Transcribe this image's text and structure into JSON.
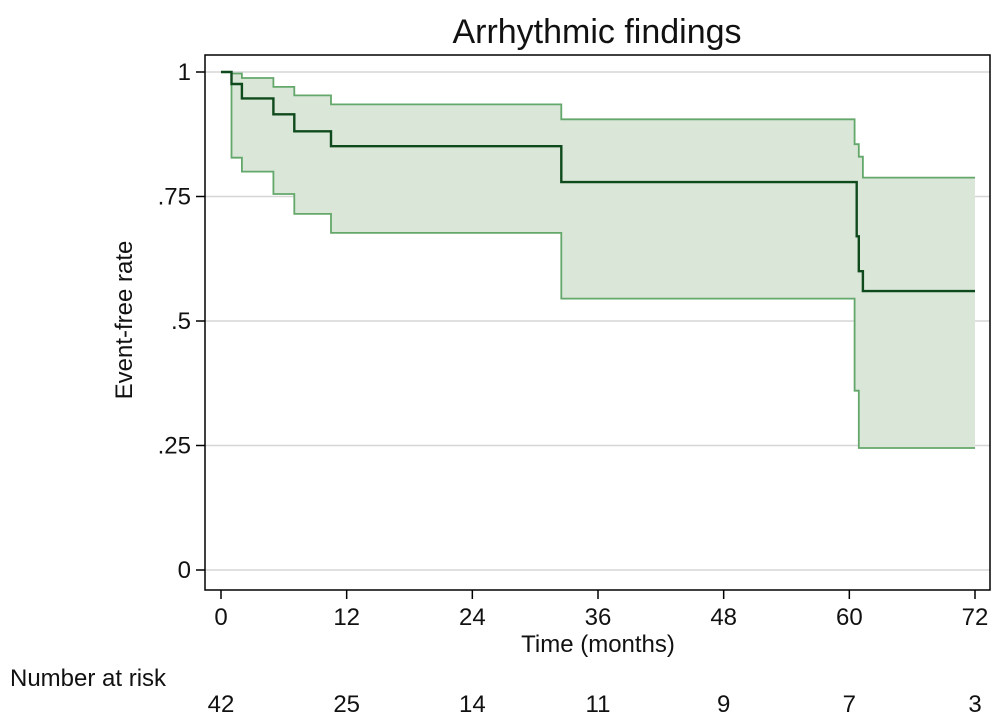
{
  "chart_data": {
    "type": "line",
    "subtype": "kaplan-meier step curve with confidence band",
    "title": "Arrhythmic findings",
    "xlabel": "Time (months)",
    "ylabel": "Event-free rate",
    "xlim": [
      0,
      72
    ],
    "ylim": [
      0,
      1
    ],
    "x_ticks": [
      0,
      12,
      24,
      36,
      48,
      60,
      72
    ],
    "x_tick_labels": [
      "0",
      "12",
      "24",
      "36",
      "48",
      "60",
      "72"
    ],
    "y_ticks": [
      0,
      0.25,
      0.5,
      0.75,
      1
    ],
    "y_tick_labels": [
      "0",
      ".25",
      ".5",
      ".75",
      "1"
    ],
    "grid": "horizontal",
    "legend": "none",
    "colors": {
      "survival_line": "#0f4a1c",
      "ci_line": "#63a86a",
      "ci_fill": "#d9e6d8",
      "gridline": "#d6d6d6",
      "axis": "#000000"
    },
    "series": [
      {
        "role": "estimate",
        "step": "post",
        "x": [
          0,
          1,
          2,
          5,
          7,
          10.5,
          32.5,
          60.7,
          60.9,
          61.3,
          72
        ],
        "y": [
          1.0,
          0.976,
          0.947,
          0.915,
          0.881,
          0.851,
          0.779,
          0.67,
          0.6,
          0.56,
          0.56
        ]
      },
      {
        "role": "upper_ci",
        "step": "post",
        "x": [
          0,
          1,
          2,
          5,
          7,
          10.5,
          32.5,
          60.5,
          60.9,
          61.3,
          72
        ],
        "y": [
          1.0,
          0.997,
          0.988,
          0.97,
          0.953,
          0.935,
          0.905,
          0.855,
          0.83,
          0.788,
          0.788
        ]
      },
      {
        "role": "lower_ci",
        "step": "post",
        "x": [
          0,
          1,
          2,
          5,
          7,
          10.5,
          32.5,
          60.5,
          60.9,
          61.3,
          72
        ],
        "y": [
          1.0,
          0.828,
          0.8,
          0.755,
          0.715,
          0.677,
          0.545,
          0.36,
          0.245,
          0.245,
          0.245
        ]
      }
    ],
    "risk_table": {
      "label": "Number at risk",
      "times": [
        0,
        12,
        24,
        36,
        48,
        60,
        72
      ],
      "counts": [
        "42",
        "25",
        "14",
        "11",
        "9",
        "7",
        "3"
      ]
    }
  }
}
